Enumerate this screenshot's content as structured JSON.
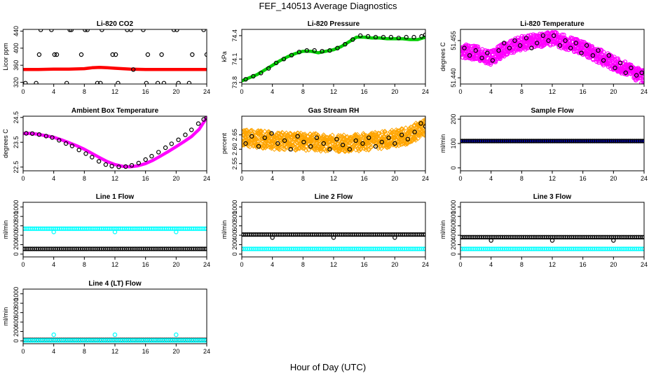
{
  "title": "FEF_140513  Average Diagnostics",
  "xlabel": "Hour of Day (UTC)",
  "colors": {
    "black": "#000000",
    "red": "#ff0000",
    "green": "#00cc00",
    "magenta": "#ff00ff",
    "orange": "#ffa500",
    "blue": "#0000ff",
    "cyan": "#00ffff"
  },
  "chart_data": [
    {
      "type": "scatter",
      "title": "Li-820 CO2",
      "ylabel": "Licor ppm",
      "xlim": [
        0,
        24
      ],
      "ylim": [
        316,
        444
      ],
      "xticks": [
        0,
        4,
        8,
        12,
        16,
        20,
        24
      ],
      "yticks": [
        320,
        360,
        400,
        440
      ],
      "series": [
        {
          "color": "red",
          "shape": "line",
          "x": [
            0,
            2,
            4,
            6,
            8,
            9,
            10,
            11,
            12,
            13,
            14,
            16,
            18,
            20,
            22,
            24
          ],
          "y": [
            350,
            350,
            351,
            351,
            352,
            354,
            355,
            354,
            353,
            352,
            351,
            350,
            350,
            350,
            350,
            350
          ]
        },
        {
          "color": "black",
          "shape": "circle",
          "x": [
            0.3,
            1.7,
            2.1,
            2.3,
            3.7,
            4.1,
            4.4,
            5.7,
            6.1,
            6.3,
            7.6,
            8.1,
            8.4,
            9.7,
            10.1,
            10.3,
            11.7,
            12.1,
            12.4,
            13.6,
            14.1,
            14.4,
            15.7,
            16.1,
            16.3,
            17.6,
            18.1,
            18.4,
            19.7,
            20.1,
            20.3,
            21.7,
            22.1,
            23.6,
            24.0
          ],
          "y": [
            318,
            318,
            385,
            443,
            443,
            385,
            385,
            318,
            443,
            443,
            385,
            443,
            443,
            318,
            318,
            443,
            385,
            385,
            318,
            443,
            443,
            350,
            443,
            318,
            385,
            318,
            385,
            318,
            443,
            443,
            318,
            318,
            385,
            443,
            385
          ]
        }
      ]
    },
    {
      "type": "scatter",
      "title": "Li-820 Pressure",
      "ylabel": "kPa",
      "xlim": [
        0,
        24
      ],
      "ylim": [
        73.78,
        74.48
      ],
      "xticks": [
        0,
        4,
        8,
        12,
        16,
        20,
        24
      ],
      "yticks": [
        73.8,
        74.1,
        74.4
      ],
      "ytick_labels": [
        "73.8",
        "74.1",
        "74.4"
      ],
      "series": [
        {
          "color": "green",
          "shape": "line",
          "x": [
            0,
            1,
            2,
            3,
            4,
            5,
            6,
            7,
            8,
            9,
            10,
            11,
            12,
            13,
            14,
            15,
            16,
            17,
            18,
            19,
            20,
            21,
            22,
            23,
            24
          ],
          "y": [
            73.82,
            73.86,
            73.9,
            73.96,
            74.02,
            74.08,
            74.13,
            74.17,
            74.2,
            74.2,
            74.18,
            74.2,
            74.22,
            74.26,
            74.32,
            74.38,
            74.38,
            74.37,
            74.37,
            74.36,
            74.36,
            74.36,
            74.35,
            74.35,
            74.38
          ]
        },
        {
          "color": "black",
          "shape": "circle",
          "x": [
            0.5,
            1.5,
            2.5,
            3.5,
            4.5,
            5.5,
            6.5,
            7.5,
            8.5,
            9.5,
            10.5,
            11.5,
            12.5,
            13.5,
            14.5,
            15.5,
            16.5,
            17.5,
            18.5,
            19.5,
            20.5,
            21.5,
            22.5,
            23.5,
            24.0
          ],
          "y": [
            73.84,
            73.88,
            73.92,
            73.98,
            74.05,
            74.1,
            74.15,
            74.19,
            74.21,
            74.21,
            74.2,
            74.21,
            74.24,
            74.29,
            74.35,
            74.4,
            74.39,
            74.38,
            74.38,
            74.38,
            74.37,
            74.38,
            74.38,
            74.39,
            74.41
          ]
        }
      ]
    },
    {
      "type": "scatter",
      "title": "Li-820 Temperature",
      "ylabel": "degrees C",
      "xlim": [
        0,
        24
      ],
      "ylim": [
        51.4375,
        51.4595
      ],
      "xticks": [
        0,
        4,
        8,
        12,
        16,
        20,
        24
      ],
      "yticks": [
        51.44,
        51.455
      ],
      "ytick_labels": [
        "51.440",
        "51.455"
      ],
      "series": [
        {
          "color": "magenta",
          "shape": "circle",
          "trend": "band",
          "jitter": 0.0028,
          "x": [
            0,
            2,
            4,
            6,
            8,
            10,
            12,
            14,
            16,
            18,
            20,
            22,
            24
          ],
          "y": [
            51.451,
            51.45,
            51.448,
            51.452,
            51.454,
            51.455,
            51.456,
            51.454,
            51.452,
            51.449,
            51.446,
            51.443,
            51.44
          ]
        },
        {
          "color": "black",
          "shape": "circle",
          "x": [
            0.5,
            1.2,
            2.0,
            2.8,
            3.5,
            4.2,
            5.0,
            5.7,
            6.4,
            7.1,
            7.8,
            8.6,
            9.3,
            10.0,
            10.8,
            11.5,
            12.2,
            13.0,
            13.7,
            14.4,
            15.1,
            15.8,
            16.5,
            17.3,
            18.0,
            18.7,
            19.4,
            20.2,
            20.9,
            21.6,
            22.3,
            23.0,
            23.7
          ],
          "y": [
            51.452,
            51.449,
            51.451,
            51.448,
            51.45,
            51.447,
            51.451,
            51.454,
            51.452,
            51.455,
            51.453,
            51.456,
            51.452,
            51.454,
            51.457,
            51.455,
            51.457,
            51.453,
            51.455,
            51.452,
            51.454,
            51.45,
            51.453,
            51.449,
            51.451,
            51.447,
            51.449,
            51.444,
            51.446,
            51.442,
            51.444,
            51.441,
            51.442
          ]
        }
      ]
    },
    {
      "type": "scatter",
      "title": "Ambient Box Temperature",
      "ylabel": "degrees C",
      "xlim": [
        0,
        24
      ],
      "ylim": [
        22.35,
        24.55
      ],
      "xticks": [
        0,
        4,
        8,
        12,
        16,
        20,
        24
      ],
      "yticks": [
        22.5,
        23.5,
        24.5
      ],
      "ytick_labels": [
        "22.5",
        "23.5",
        "24.5"
      ],
      "series": [
        {
          "color": "magenta",
          "shape": "line",
          "x": [
            0,
            1,
            2,
            3,
            4,
            5,
            6,
            7,
            8,
            9,
            10,
            11,
            12,
            13,
            14,
            15,
            16,
            17,
            18,
            19,
            20,
            21,
            22,
            23,
            24
          ],
          "y": [
            23.85,
            23.86,
            23.82,
            23.76,
            23.7,
            23.6,
            23.48,
            23.36,
            23.22,
            23.05,
            22.88,
            22.72,
            22.6,
            22.53,
            22.51,
            22.55,
            22.64,
            22.78,
            22.95,
            23.13,
            23.32,
            23.52,
            23.73,
            24.02,
            24.5
          ]
        },
        {
          "color": "black",
          "shape": "circle",
          "x": [
            0.4,
            1.2,
            2.1,
            3.0,
            3.8,
            4.7,
            5.6,
            6.4,
            7.3,
            8.2,
            9.0,
            9.9,
            10.8,
            11.6,
            12.5,
            13.4,
            14.2,
            15.1,
            16.0,
            16.8,
            17.7,
            18.6,
            19.4,
            20.3,
            21.2,
            22.0,
            22.9,
            23.6,
            24.0
          ],
          "y": [
            23.86,
            23.85,
            23.81,
            23.75,
            23.69,
            23.58,
            23.45,
            23.35,
            23.19,
            23.04,
            22.9,
            22.73,
            22.6,
            22.54,
            22.51,
            22.52,
            22.57,
            22.66,
            22.8,
            22.94,
            23.1,
            23.28,
            23.44,
            23.6,
            23.8,
            24.0,
            24.25,
            24.42,
            24.5
          ]
        }
      ]
    },
    {
      "type": "scatter",
      "title": "Gas Stream RH",
      "ylabel": "percent",
      "xlim": [
        0,
        24
      ],
      "ylim": [
        2.525,
        2.715
      ],
      "xticks": [
        0,
        4,
        8,
        12,
        16,
        20,
        24
      ],
      "yticks": [
        2.55,
        2.6,
        2.65
      ],
      "ytick_labels": [
        "2.55",
        "2.60",
        "2.65"
      ],
      "series": [
        {
          "color": "orange",
          "shape": "diamond",
          "trend": "band",
          "jitter": 0.03,
          "x": [
            0,
            2,
            4,
            6,
            8,
            10,
            12,
            14,
            16,
            18,
            20,
            22,
            24
          ],
          "y": [
            2.64,
            2.635,
            2.63,
            2.628,
            2.626,
            2.624,
            2.622,
            2.622,
            2.626,
            2.63,
            2.638,
            2.65,
            2.68
          ]
        },
        {
          "color": "black",
          "shape": "circle",
          "x": [
            0.5,
            1.3,
            2.2,
            3.0,
            3.9,
            4.7,
            5.6,
            6.4,
            7.3,
            8.1,
            9.0,
            9.8,
            10.7,
            11.5,
            12.4,
            13.2,
            14.1,
            14.9,
            15.8,
            16.6,
            17.5,
            18.3,
            19.2,
            20.0,
            20.9,
            21.7,
            22.6,
            23.4,
            24.0
          ],
          "y": [
            2.62,
            2.645,
            2.61,
            2.64,
            2.655,
            2.62,
            2.63,
            2.6,
            2.645,
            2.625,
            2.61,
            2.64,
            2.62,
            2.6,
            2.635,
            2.615,
            2.6,
            2.63,
            2.62,
            2.64,
            2.61,
            2.625,
            2.64,
            2.62,
            2.65,
            2.635,
            2.66,
            2.69,
            2.68
          ]
        }
      ]
    },
    {
      "type": "scatter",
      "title": "Sample Flow",
      "ylabel": "ml/min",
      "xlim": [
        0,
        24
      ],
      "ylim": [
        -12,
        212
      ],
      "xticks": [
        0,
        4,
        8,
        12,
        16,
        20,
        24
      ],
      "yticks": [
        0,
        100,
        200
      ],
      "series": [
        {
          "color": "blue",
          "shape": "line",
          "x": [
            0,
            24
          ],
          "y": [
            110,
            110
          ]
        },
        {
          "color": "black",
          "shape": "circle",
          "step": 0.25,
          "x_from": 0,
          "x_to": 24,
          "y_const": 110
        }
      ]
    },
    {
      "type": "scatter",
      "title": "Line 1 Flow",
      "ylabel": "ml/min",
      "xlim": [
        0,
        24
      ],
      "ylim": [
        -60,
        1100
      ],
      "xticks": [
        0,
        4,
        8,
        12,
        16,
        20,
        24
      ],
      "yticks": [
        0,
        200,
        400,
        600,
        800,
        1000
      ],
      "series": [
        {
          "color": "cyan",
          "shape": "circle",
          "step": 0.25,
          "x_from": 0,
          "x_to": 24,
          "y_const": 540,
          "outliers": {
            "x": [
              4,
              12,
              20
            ],
            "y": [
              470,
              470,
              470
            ]
          }
        },
        {
          "color": "black",
          "shape": "circle",
          "step": 0.25,
          "x_from": 0,
          "x_to": 24,
          "y_const": 110
        }
      ]
    },
    {
      "type": "scatter",
      "title": "Line 2 Flow",
      "ylabel": "ml/min",
      "xlim": [
        0,
        24
      ],
      "ylim": [
        -60,
        1100
      ],
      "xticks": [
        0,
        4,
        8,
        12,
        16,
        20,
        24
      ],
      "yticks": [
        0,
        200,
        400,
        600,
        800,
        1000
      ],
      "series": [
        {
          "color": "cyan",
          "shape": "circle",
          "step": 0.25,
          "x_from": 0,
          "x_to": 24,
          "y_const": 110
        },
        {
          "color": "black",
          "shape": "circle",
          "step": 0.25,
          "x_from": 0,
          "x_to": 24,
          "y_const": 415,
          "outliers": {
            "x": [
              4,
              12,
              20
            ],
            "y": [
              350,
              350,
              350
            ]
          }
        }
      ]
    },
    {
      "type": "scatter",
      "title": "Line 3 Flow",
      "ylabel": "ml/min",
      "xlim": [
        0,
        24
      ],
      "ylim": [
        -60,
        1100
      ],
      "xticks": [
        0,
        4,
        8,
        12,
        16,
        20,
        24
      ],
      "yticks": [
        0,
        200,
        400,
        600,
        800,
        1000
      ],
      "series": [
        {
          "color": "cyan",
          "shape": "circle",
          "step": 0.25,
          "x_from": 0,
          "x_to": 24,
          "y_const": 110
        },
        {
          "color": "black",
          "shape": "circle",
          "step": 0.25,
          "x_from": 0,
          "x_to": 24,
          "y_const": 360,
          "outliers": {
            "x": [
              4,
              12,
              20
            ],
            "y": [
              290,
              290,
              290
            ]
          }
        }
      ]
    },
    {
      "type": "scatter",
      "title": "Line 4 (LT) Flow",
      "ylabel": "ml/min",
      "xlim": [
        0,
        24
      ],
      "ylim": [
        -60,
        1100
      ],
      "xticks": [
        0,
        4,
        8,
        12,
        16,
        20,
        24
      ],
      "yticks": [
        0,
        200,
        400,
        600,
        800,
        1000
      ],
      "series": [
        {
          "color": "black",
          "shape": "circle",
          "step": 0.25,
          "x_from": 0,
          "x_to": 24,
          "y_const": 20
        },
        {
          "color": "cyan",
          "shape": "circle",
          "step": 0.25,
          "x_from": 0,
          "x_to": 24,
          "y_const": 10,
          "outliers": {
            "x": [
              4,
              12,
              20
            ],
            "y": [
              130,
              130,
              130
            ]
          }
        }
      ]
    }
  ]
}
